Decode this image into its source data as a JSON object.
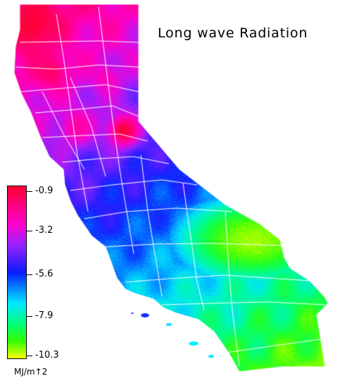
{
  "title": "Long wave Radiation",
  "legend": {
    "labels": [
      "-0.9",
      "-3.2",
      "-5.6",
      "-7.9",
      "-10.3"
    ],
    "unit": "MJ/m↑2"
  },
  "colors": {
    "max": "#ff0033",
    "high": "#ff00cc",
    "mid_high": "#0a1cff",
    "mid": "#00e8ff",
    "mid_low": "#00ff7a",
    "min": "#f8ff00",
    "boundaries": "#ffffff"
  }
}
